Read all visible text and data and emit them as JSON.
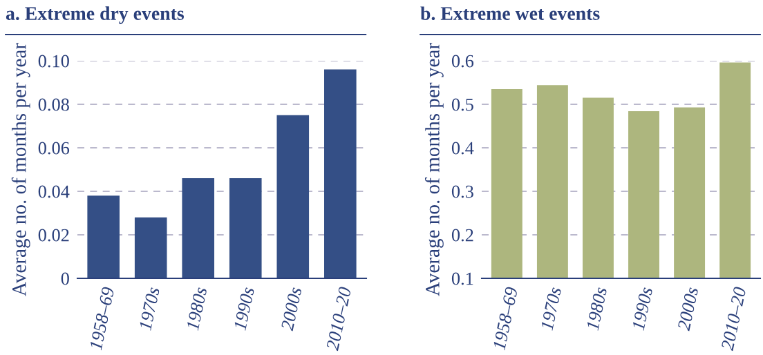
{
  "chart_data": [
    {
      "type": "bar",
      "title": "a. Extreme dry events",
      "ylabel": "Average no. of months per year",
      "categories": [
        "1958–69",
        "1970s",
        "1980s",
        "1990s",
        "2000s",
        "2010–20"
      ],
      "values": [
        0.038,
        0.028,
        0.046,
        0.046,
        0.075,
        0.096
      ],
      "color": "#344f86",
      "ylim": [
        0,
        0.1
      ],
      "yticks": [
        {
          "value": 0,
          "label": "0"
        },
        {
          "value": 0.02,
          "label": "0.02"
        },
        {
          "value": 0.04,
          "label": "0.04"
        },
        {
          "value": 0.06,
          "label": "0.06"
        },
        {
          "value": 0.08,
          "label": "0.08"
        },
        {
          "value": 0.1,
          "label": "0.10"
        }
      ],
      "grid": "y"
    },
    {
      "type": "bar",
      "title": "b. Extreme wet events",
      "ylabel": "Average no. of months per year",
      "categories": [
        "1958–69",
        "1970s",
        "1980s",
        "1990s",
        "2000s",
        "2010–20"
      ],
      "values": [
        0.535,
        0.544,
        0.515,
        0.484,
        0.493,
        0.596
      ],
      "color": "#adb67e",
      "ylim": [
        0.1,
        0.6
      ],
      "yticks": [
        0.1,
        0.2,
        0.3,
        0.4,
        0.5,
        0.6
      ],
      "grid": "y"
    }
  ]
}
